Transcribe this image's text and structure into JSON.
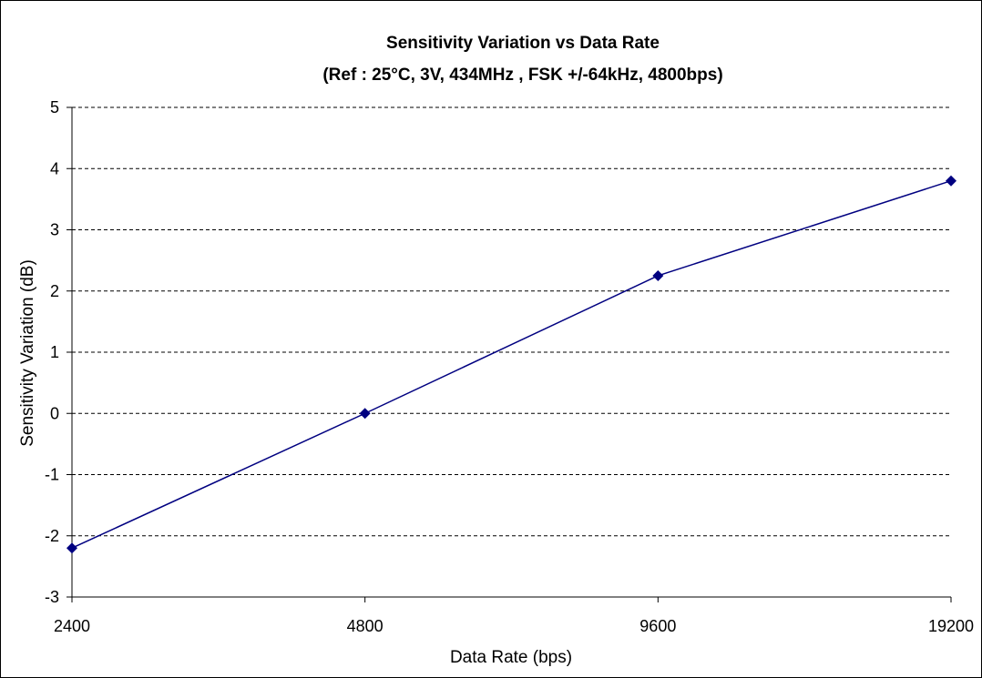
{
  "chart_data": {
    "type": "line",
    "title": "Sensitivity Variation vs Data Rate",
    "subtitle": "(Ref : 25°C, 3V, 434MHz , FSK +/-64kHz, 4800bps)",
    "xlabel": "Data Rate (bps)",
    "ylabel": "Sensitivity Variation (dB)",
    "categories": [
      "2400",
      "4800",
      "9600",
      "19200"
    ],
    "series": [
      {
        "values": [
          -2.2,
          0,
          2.25,
          3.8
        ],
        "color": "#000080",
        "marker": "diamond"
      }
    ],
    "ylim": [
      -3,
      5
    ],
    "yticks": [
      "-3",
      "-2",
      "-1",
      "0",
      "1",
      "2",
      "3",
      "4",
      "5"
    ],
    "grid": "horizontal dashed",
    "legend": "none"
  }
}
